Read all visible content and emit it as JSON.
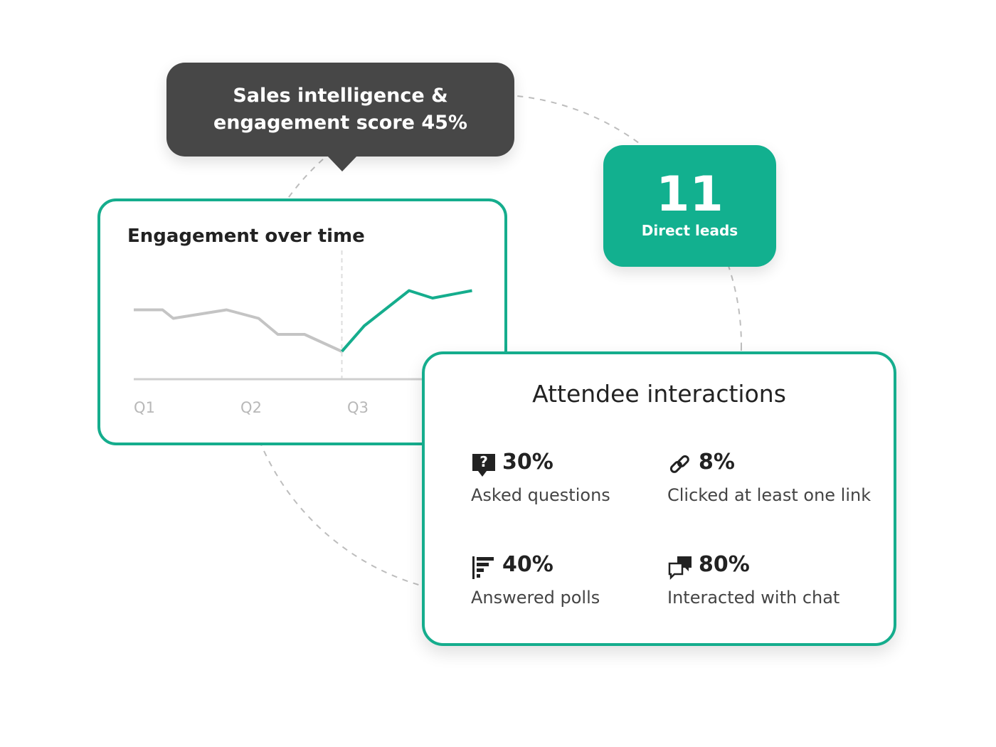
{
  "tooltip": "Sales intelligence & engagement score 45%",
  "leads": {
    "value": "11",
    "label": "Direct leads"
  },
  "chart_data": {
    "type": "line",
    "title": "Engagement over time",
    "xlim": [
      0.9,
      4.4
    ],
    "ylim": [
      0,
      100
    ],
    "xticks": [
      {
        "value": 1,
        "label": "Q1"
      },
      {
        "value": 2,
        "label": "Q2"
      },
      {
        "value": 3,
        "label": "Q3"
      }
    ],
    "series": [
      {
        "color": "#c4c4c4",
        "x": [
          0.9,
          1.17,
          1.27,
          1.77,
          2.07,
          2.25,
          2.5,
          2.85
        ],
        "values": [
          65,
          65,
          57,
          65,
          57,
          42,
          42,
          26
        ]
      },
      {
        "color": "#15ad8d",
        "x": [
          2.85,
          3.06,
          3.48,
          3.7,
          4.07
        ],
        "values": [
          26,
          50,
          83,
          76,
          83
        ]
      }
    ]
  },
  "interactions": {
    "title": "Attendee interactions",
    "stats": [
      {
        "value": "30%",
        "label": "Asked questions"
      },
      {
        "value": "8%",
        "label": "Clicked at least one link"
      },
      {
        "value": "40%",
        "label": "Answered polls"
      },
      {
        "value": "80%",
        "label": "Interacted with chat"
      }
    ]
  }
}
